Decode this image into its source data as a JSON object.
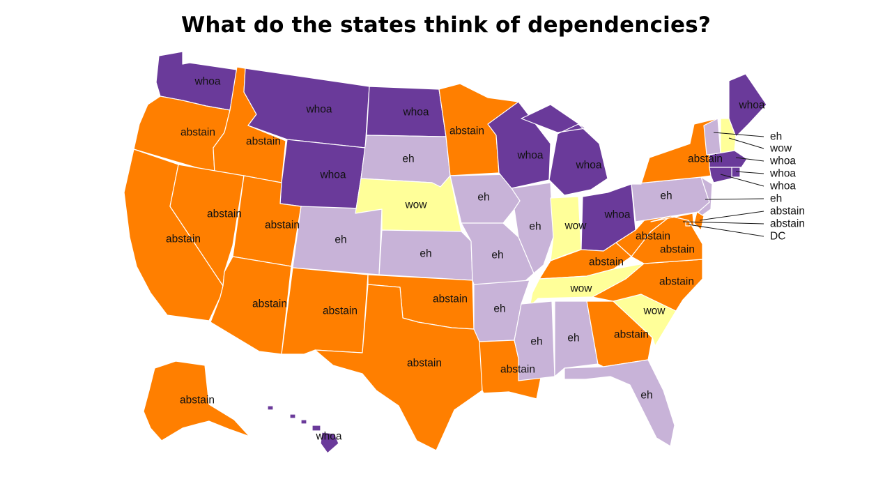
{
  "title": "What do the states think of dependencies?",
  "colors": {
    "whoa": "#6a3a9a",
    "abstain": "#ff7f00",
    "eh": "#c8b3d8",
    "wow": "#ffff99"
  },
  "states": {
    "WA": "whoa",
    "OR": "abstain",
    "CA": "abstain",
    "ID": "abstain",
    "NV": "abstain",
    "MT": "whoa",
    "WY": "whoa",
    "UT": "abstain",
    "AZ": "abstain",
    "CO": "eh",
    "NM": "abstain",
    "ND": "whoa",
    "SD": "eh",
    "NE": "wow",
    "KS": "eh",
    "OK": "abstain",
    "TX": "abstain",
    "MN": "abstain",
    "IA": "eh",
    "MO": "eh",
    "AR": "eh",
    "LA": "abstain",
    "WI": "whoa",
    "IL": "eh",
    "MI": "whoa",
    "IN": "wow",
    "OH": "whoa",
    "KY": "abstain",
    "TN": "wow",
    "MS": "eh",
    "AL": "eh",
    "GA": "abstain",
    "FL": "eh",
    "SC": "wow",
    "NC": "abstain",
    "VA": "abstain",
    "WV": "abstain",
    "PA": "eh",
    "NY": "abstain",
    "ME": "whoa",
    "VT": "eh",
    "NH": "wow",
    "MA": "whoa",
    "RI": "whoa",
    "CT": "whoa",
    "NJ": "eh",
    "DE": "abstain",
    "MD": "abstain",
    "DC": "abstain",
    "AK": "abstain",
    "HI": "whoa"
  },
  "callouts": [
    {
      "state": "VT",
      "value": "eh"
    },
    {
      "state": "NH",
      "value": "wow"
    },
    {
      "state": "MA",
      "value": "whoa"
    },
    {
      "state": "RI",
      "value": "whoa"
    },
    {
      "state": "CT",
      "value": "whoa"
    },
    {
      "state": "NJ",
      "value": "eh"
    },
    {
      "state": "DE",
      "value": "abstain"
    },
    {
      "state": "MD",
      "value": "abstain"
    },
    {
      "state": "DC",
      "value": "DC"
    }
  ]
}
